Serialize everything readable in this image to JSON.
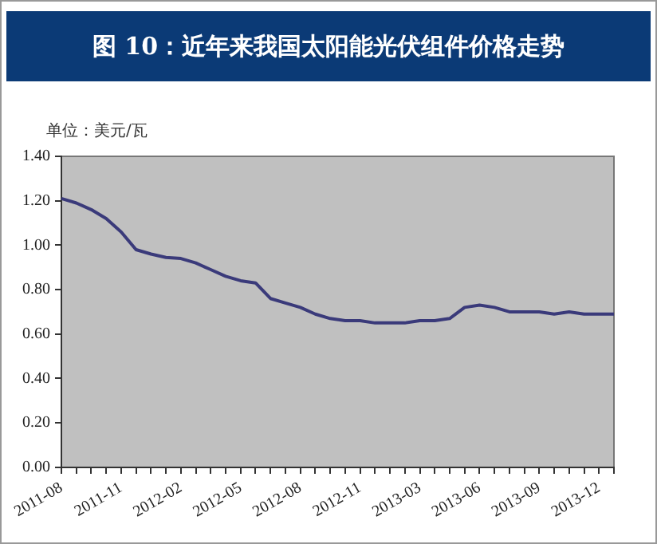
{
  "chart_data": {
    "type": "line",
    "title": "图 10：近年来我国太阳能光伏组件价格走势",
    "ylabel": "单位：美元/瓦",
    "categories": [
      "2011-08",
      null,
      null,
      null,
      "2011-11",
      null,
      null,
      null,
      "2012-02",
      null,
      null,
      null,
      "2012-05",
      null,
      null,
      null,
      "2012-08",
      null,
      null,
      null,
      "2012-11",
      null,
      null,
      null,
      "2013-03",
      null,
      null,
      null,
      "2013-06",
      null,
      null,
      null,
      "2013-09",
      null,
      null,
      null,
      "2013-12",
      null
    ],
    "series": [
      {
        "color": "#3a3a7a",
        "values": [
          1.21,
          1.19,
          1.16,
          1.12,
          1.06,
          0.98,
          0.96,
          0.945,
          0.94,
          0.92,
          0.89,
          0.86,
          0.84,
          0.83,
          0.76,
          0.74,
          0.72,
          0.69,
          0.67,
          0.66,
          0.66,
          0.65,
          0.65,
          0.65,
          0.66,
          0.66,
          0.67,
          0.72,
          0.73,
          0.72,
          0.7,
          0.7,
          0.7,
          0.69,
          0.7,
          0.69,
          0.69,
          0.69
        ]
      }
    ],
    "ylim": [
      0,
      1.4
    ],
    "yticks": [
      {
        "value": 0,
        "label": "0.00"
      },
      {
        "value": 0.2,
        "label": "0.20"
      },
      {
        "value": 0.4,
        "label": "0.40"
      },
      {
        "value": 0.6,
        "label": "0.60"
      },
      {
        "value": 0.8,
        "label": "0.80"
      },
      {
        "value": 1.0,
        "label": "1.00"
      },
      {
        "value": 1.2,
        "label": "1.20"
      },
      {
        "value": 1.4,
        "label": "1.40"
      }
    ],
    "grid": false,
    "legend": false,
    "marker": "none",
    "line_style": "solid"
  }
}
